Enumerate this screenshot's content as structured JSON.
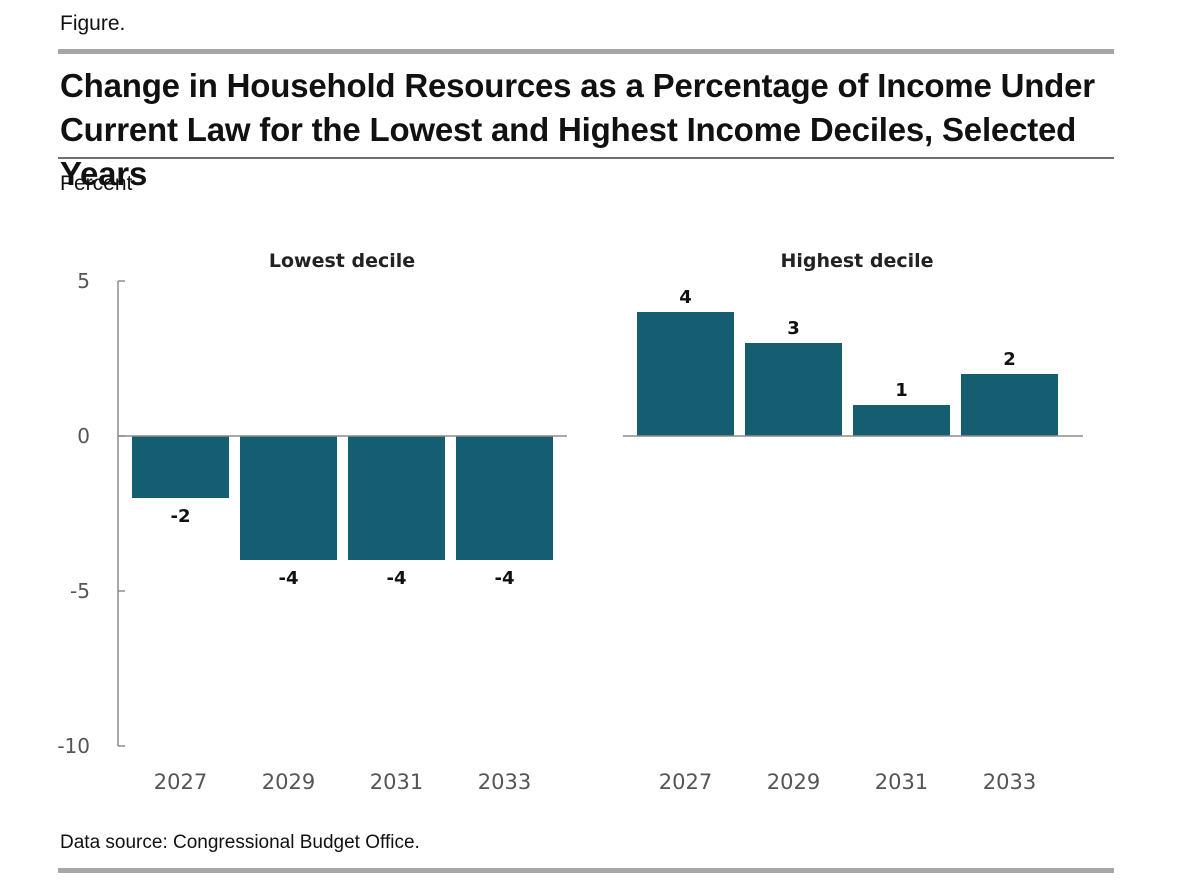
{
  "header": {
    "figure_label": "Figure.",
    "title_line1": "Change in Household Resources as a Percentage of Income Under",
    "title_line2": "Current Law for the Lowest and Highest Income Deciles, Selected Years",
    "unit_label": "Percent"
  },
  "footer": {
    "source": "Data source: Congressional Budget Office."
  },
  "colors": {
    "bar": "#155e72",
    "axis": "#8c8c8c"
  },
  "chart_data": [
    {
      "type": "bar",
      "title": "Lowest decile",
      "ylabel": "Percent",
      "categories": [
        "2027",
        "2029",
        "2031",
        "2033"
      ],
      "values": [
        -2,
        -4,
        -4,
        -4
      ],
      "ylim": [
        -10,
        5
      ],
      "yticks": [
        5,
        0,
        -5,
        -10
      ],
      "ytick_labels": [
        "5",
        "0",
        "-5",
        "-10"
      ]
    },
    {
      "type": "bar",
      "title": "Highest decile",
      "categories": [
        "2027",
        "2029",
        "2031",
        "2033"
      ],
      "values": [
        4,
        3,
        1,
        2
      ],
      "ylim": [
        -10,
        5
      ]
    }
  ]
}
